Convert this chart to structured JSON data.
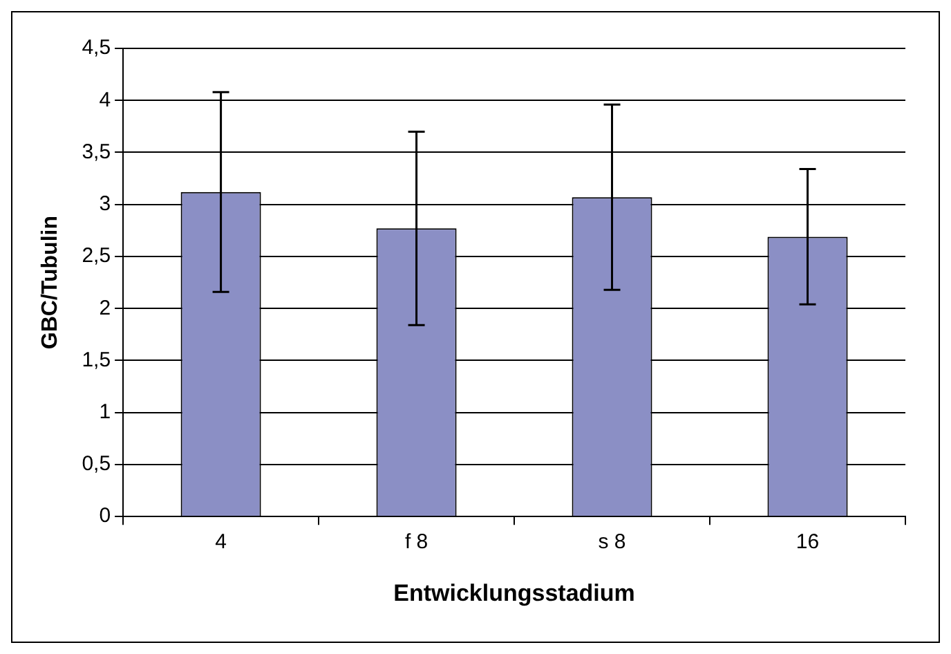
{
  "chart_data": {
    "type": "bar",
    "xlabel": "Entwicklungsstadium",
    "ylabel": "GBC/Tubulin",
    "categories": [
      "4",
      "f 8",
      "s 8",
      "16"
    ],
    "values": [
      3.12,
      2.77,
      3.07,
      2.69
    ],
    "errors": [
      0.96,
      0.93,
      0.89,
      0.65
    ],
    "color": "#8b8fc5",
    "ylim": [
      0,
      4.5
    ],
    "yticks": [
      0,
      {
        "value": 0.5,
        "label": "0,5"
      },
      1,
      {
        "value": 1.5,
        "label": "1,5"
      },
      2,
      {
        "value": 2.5,
        "label": "2,5"
      },
      3,
      {
        "value": 3.5,
        "label": "3,5"
      },
      4,
      {
        "value": 4.5,
        "label": "4,5"
      }
    ],
    "grid": "y",
    "legend": false
  }
}
